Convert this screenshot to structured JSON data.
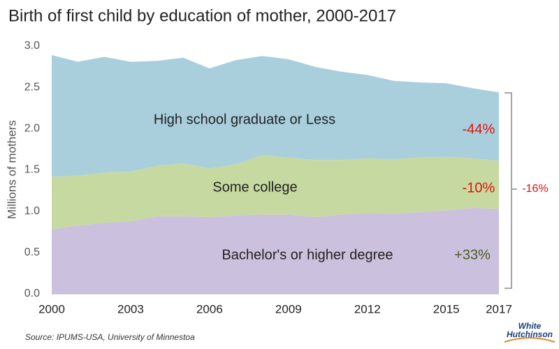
{
  "chart_data": {
    "type": "stacked_area",
    "title": "Birth of first child by education of mother, 2000-2017",
    "y_label": "Millions of mothers",
    "x": [
      2000,
      2001,
      2002,
      2003,
      2004,
      2005,
      2006,
      2007,
      2008,
      2009,
      2010,
      2011,
      2012,
      2013,
      2014,
      2015,
      2016,
      2017
    ],
    "xlim": [
      2000,
      2017
    ],
    "xticks": [
      2000,
      2003,
      2006,
      2009,
      2012,
      2015,
      2017
    ],
    "ylim": [
      0,
      3
    ],
    "yticks": [
      {
        "value": 0,
        "label": "0.0"
      },
      0.5,
      {
        "value": 1,
        "label": "1.0"
      },
      1.5,
      {
        "value": 2,
        "label": "2.0"
      },
      2.5,
      {
        "value": 3,
        "label": "3.0"
      }
    ],
    "series": [
      {
        "name": "Bachelor's or higher degree",
        "color": "#cbc0dd",
        "values": [
          0.78,
          0.83,
          0.86,
          0.88,
          0.94,
          0.94,
          0.93,
          0.95,
          0.96,
          0.96,
          0.93,
          0.96,
          0.98,
          0.97,
          0.99,
          1.01,
          1.04,
          1.03
        ]
      },
      {
        "name": "Some college",
        "color": "#c6d9a0",
        "values": [
          0.64,
          0.6,
          0.61,
          0.6,
          0.61,
          0.64,
          0.59,
          0.62,
          0.72,
          0.69,
          0.69,
          0.66,
          0.66,
          0.66,
          0.66,
          0.65,
          0.6,
          0.58
        ]
      },
      {
        "name": "High school graduate or Less",
        "color": "#a9cfdd",
        "values": [
          1.47,
          1.38,
          1.4,
          1.33,
          1.27,
          1.28,
          1.21,
          1.26,
          1.2,
          1.19,
          1.13,
          1.07,
          1.01,
          0.95,
          0.91,
          0.89,
          0.85,
          0.83
        ]
      }
    ],
    "annotations": [
      {
        "text": "-44%",
        "color": "#e3120b"
      },
      {
        "text": "-10%",
        "color": "#e3120b"
      },
      {
        "text": "+33%",
        "color": "#4f5d24"
      },
      {
        "text": "-16%",
        "color": "#e3120b"
      }
    ],
    "source": "Source: IPUMS-USA, University of Minnestoa",
    "logo": [
      "White",
      "Hutchinson"
    ]
  }
}
